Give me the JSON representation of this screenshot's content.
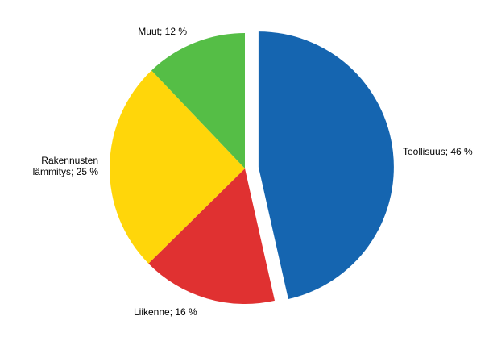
{
  "chart_data": {
    "type": "pie",
    "title": "",
    "slices": [
      {
        "label": "Teollisuus; 46 %",
        "value": 46,
        "color": "#1565b0",
        "exploded": true
      },
      {
        "label": "Liikenne; 16 %",
        "value": 16,
        "color": "#e03131",
        "exploded": false
      },
      {
        "label": "Rakennusten lämmitys; 25 %",
        "label_lines": [
          "Rakennusten",
          "lämmitys; 25 %"
        ],
        "value": 25,
        "color": "#ffd60a",
        "exploded": false
      },
      {
        "label": "Muut; 12 %",
        "value": 12,
        "color": "#55be46",
        "exploded": false
      }
    ]
  }
}
